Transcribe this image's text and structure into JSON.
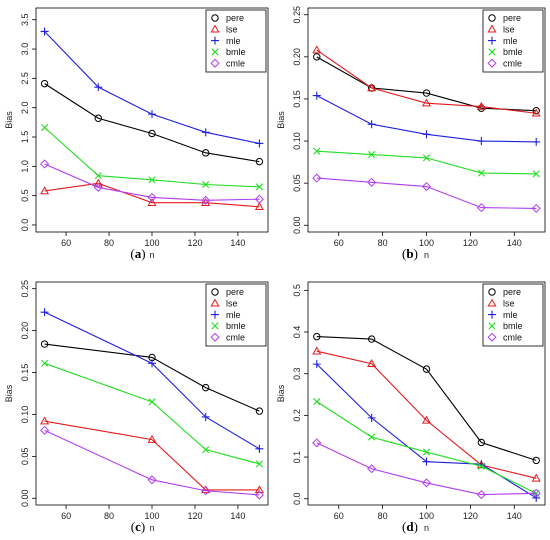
{
  "colors": {
    "pere": "#000000",
    "lse": "#e41a1c",
    "mle": "#1f1fe0",
    "bmle": "#22dd22",
    "cmle": "#b23cf0"
  },
  "markers": {
    "pere": "circle",
    "lse": "triangle",
    "mle": "plus",
    "bmle": "cross",
    "cmle": "diamond"
  },
  "chart_data": [
    {
      "type": "line",
      "caption_letter": "a",
      "xlabel": "n",
      "ylabel": "Bias",
      "xlim": [
        46,
        154
      ],
      "ylim": [
        -0.12,
        3.7
      ],
      "xticks": [
        60,
        80,
        100,
        120,
        140
      ],
      "yticks": [
        0.0,
        0.5,
        1.0,
        1.5,
        2.0,
        2.5,
        3.0,
        3.5
      ],
      "ytick_labels": [
        "0.0",
        "0.5",
        "1.0",
        "1.5",
        "2.0",
        "2.5",
        "3.0",
        "3.5"
      ],
      "legend_position": "top-right",
      "series": [
        {
          "name": "pere",
          "x": [
            50,
            75,
            100,
            125,
            150
          ],
          "y": [
            2.41,
            1.82,
            1.56,
            1.23,
            1.08
          ]
        },
        {
          "name": "lse",
          "x": [
            50,
            75,
            100,
            125,
            150
          ],
          "y": [
            0.58,
            0.71,
            0.38,
            0.38,
            0.31
          ]
        },
        {
          "name": "mle",
          "x": [
            50,
            75,
            100,
            125,
            150
          ],
          "y": [
            3.3,
            2.35,
            1.89,
            1.58,
            1.39
          ]
        },
        {
          "name": "bmle",
          "x": [
            50,
            75,
            100,
            125,
            150
          ],
          "y": [
            1.66,
            0.84,
            0.77,
            0.69,
            0.65
          ]
        },
        {
          "name": "cmle",
          "x": [
            50,
            75,
            100,
            125,
            150
          ],
          "y": [
            1.04,
            0.64,
            0.47,
            0.42,
            0.44
          ]
        }
      ]
    },
    {
      "type": "line",
      "caption_letter": "b",
      "xlabel": "n",
      "ylabel": "Bias",
      "xlim": [
        46,
        154
      ],
      "ylim": [
        -0.008,
        0.258
      ],
      "xticks": [
        60,
        80,
        100,
        120,
        140
      ],
      "yticks": [
        0.0,
        0.05,
        0.1,
        0.15,
        0.2,
        0.25
      ],
      "ytick_labels": [
        "0.00",
        "0.05",
        "0.10",
        "0.15",
        "0.20",
        "0.25"
      ],
      "legend_position": "top-right",
      "series": [
        {
          "name": "pere",
          "x": [
            50,
            75,
            100,
            125,
            150
          ],
          "y": [
            0.2,
            0.163,
            0.157,
            0.139,
            0.136
          ]
        },
        {
          "name": "lse",
          "x": [
            50,
            75,
            100,
            125,
            150
          ],
          "y": [
            0.208,
            0.163,
            0.145,
            0.141,
            0.133
          ]
        },
        {
          "name": "mle",
          "x": [
            50,
            75,
            100,
            125,
            150
          ],
          "y": [
            0.154,
            0.12,
            0.108,
            0.1,
            0.099
          ]
        },
        {
          "name": "bmle",
          "x": [
            50,
            75,
            100,
            125,
            150
          ],
          "y": [
            0.088,
            0.084,
            0.08,
            0.062,
            0.061
          ]
        },
        {
          "name": "cmle",
          "x": [
            50,
            75,
            100,
            125,
            150
          ],
          "y": [
            0.056,
            0.051,
            0.046,
            0.021,
            0.02
          ]
        }
      ]
    },
    {
      "type": "line",
      "caption_letter": "c",
      "xlabel": "n",
      "ylabel": "Bias",
      "xlim": [
        46,
        154
      ],
      "ylim": [
        -0.008,
        0.258
      ],
      "xticks": [
        60,
        80,
        100,
        120,
        140
      ],
      "yticks": [
        0.0,
        0.05,
        0.1,
        0.15,
        0.2,
        0.25
      ],
      "ytick_labels": [
        "0.00",
        "0.05",
        "0.10",
        "0.15",
        "0.20",
        "0.25"
      ],
      "legend_position": "top-right",
      "series": [
        {
          "name": "pere",
          "x": [
            50,
            100,
            125,
            150
          ],
          "y": [
            0.184,
            0.168,
            0.132,
            0.104
          ]
        },
        {
          "name": "lse",
          "x": [
            50,
            100,
            125,
            150
          ],
          "y": [
            0.092,
            0.07,
            0.01,
            0.01
          ]
        },
        {
          "name": "mle",
          "x": [
            50,
            100,
            125,
            150
          ],
          "y": [
            0.222,
            0.161,
            0.097,
            0.059
          ]
        },
        {
          "name": "bmle",
          "x": [
            50,
            100,
            125,
            150
          ],
          "y": [
            0.161,
            0.115,
            0.058,
            0.041
          ]
        },
        {
          "name": "cmle",
          "x": [
            50,
            100,
            125,
            150
          ],
          "y": [
            0.081,
            0.022,
            0.009,
            0.004
          ]
        }
      ]
    },
    {
      "type": "line",
      "caption_letter": "d",
      "xlabel": "n",
      "ylabel": "Bias",
      "xlim": [
        46,
        154
      ],
      "ylim": [
        -0.015,
        0.52
      ],
      "xticks": [
        60,
        80,
        100,
        120,
        140
      ],
      "yticks": [
        0.0,
        0.1,
        0.2,
        0.3,
        0.4,
        0.5
      ],
      "ytick_labels": [
        "0.0",
        "0.1",
        "0.2",
        "0.3",
        "0.4",
        "0.5"
      ],
      "legend_position": "top-right",
      "series": [
        {
          "name": "pere",
          "x": [
            50,
            75,
            100,
            125,
            150
          ],
          "y": [
            0.389,
            0.383,
            0.311,
            0.135,
            0.092
          ]
        },
        {
          "name": "lse",
          "x": [
            50,
            75,
            100,
            125,
            150
          ],
          "y": [
            0.354,
            0.324,
            0.188,
            0.081,
            0.049
          ]
        },
        {
          "name": "mle",
          "x": [
            50,
            75,
            100,
            125,
            150
          ],
          "y": [
            0.323,
            0.194,
            0.089,
            0.083,
            0.002
          ]
        },
        {
          "name": "bmle",
          "x": [
            50,
            75,
            100,
            125,
            150
          ],
          "y": [
            0.233,
            0.148,
            0.112,
            0.078,
            0.013
          ]
        },
        {
          "name": "cmle",
          "x": [
            50,
            75,
            100,
            125,
            150
          ],
          "y": [
            0.134,
            0.072,
            0.038,
            0.01,
            0.013
          ]
        }
      ]
    }
  ]
}
